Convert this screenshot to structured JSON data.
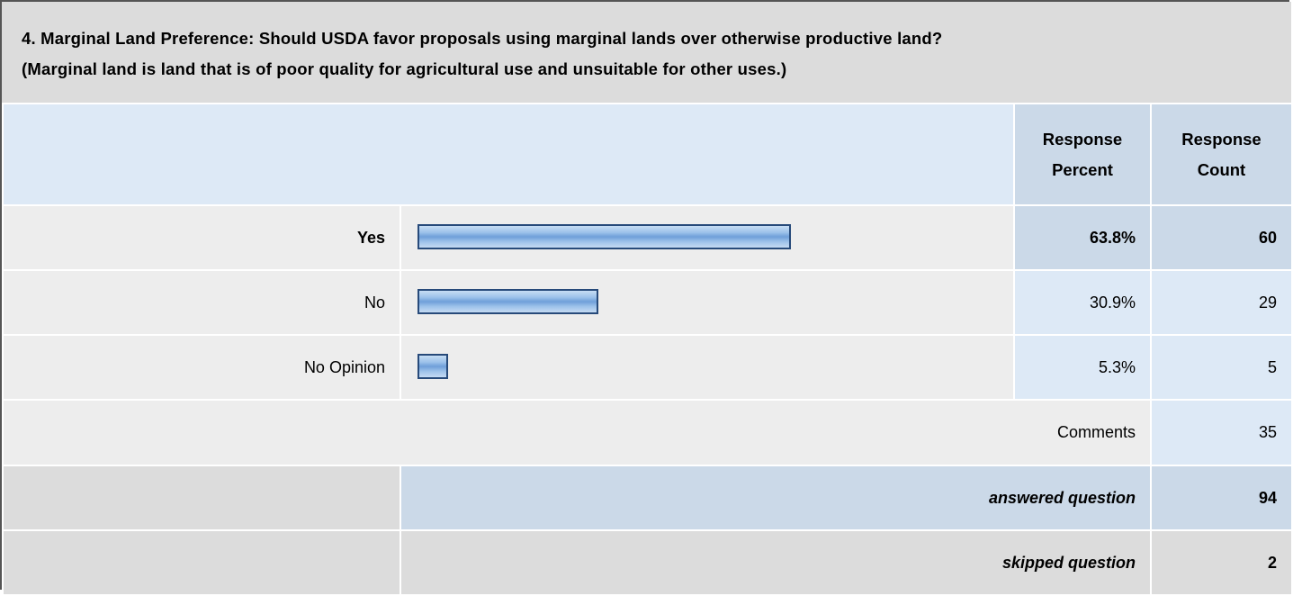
{
  "question": {
    "line1": "4. Marginal Land Preference: Should USDA favor proposals using marginal lands over otherwise productive land?",
    "line2": "(Marginal land is land that is of poor quality for agricultural use and unsuitable for other uses.)"
  },
  "headers": {
    "percent": [
      "Response",
      "Percent"
    ],
    "count": [
      "Response",
      "Count"
    ]
  },
  "chart_data": {
    "type": "bar",
    "orientation": "horizontal",
    "title": "4. Marginal Land Preference: Should USDA favor proposals using marginal lands over otherwise productive land? (Marginal land is land that is of poor quality for agricultural use and unsuitable for other uses.)",
    "categories": [
      "Yes",
      "No",
      "No Opinion"
    ],
    "values": [
      63.8,
      30.9,
      5.3
    ],
    "percent_labels": [
      "63.8%",
      "30.9%",
      "5.3%"
    ],
    "counts": [
      "60",
      "29",
      "5"
    ],
    "xlim": [
      0,
      100
    ]
  },
  "comments": {
    "label": "Comments",
    "count": "35"
  },
  "summary": {
    "answered": {
      "label": "answered question",
      "count": "94"
    },
    "skipped": {
      "label": "skipped question",
      "count": "2"
    }
  },
  "colors": {
    "header_bg": "#dcdcdc",
    "light_blue": "#dde9f6",
    "mid_blue": "#cbd9e8",
    "bar_border": "#274a7a",
    "bar_fill": "#6f9fd9"
  }
}
